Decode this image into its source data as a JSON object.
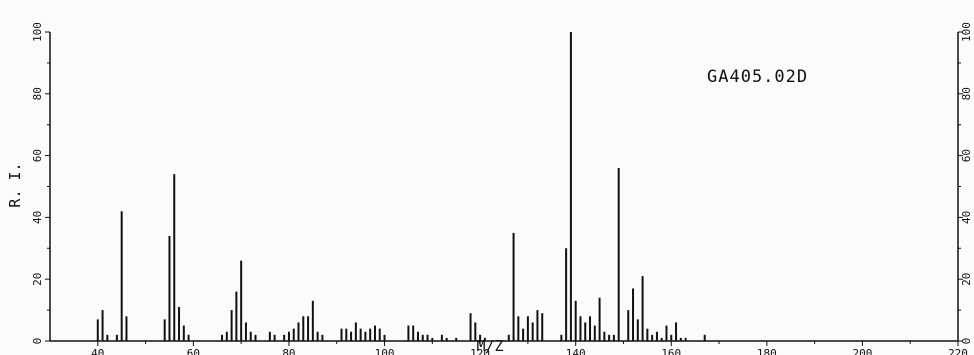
{
  "chart_data": {
    "type": "bar",
    "title": "GA405.02D",
    "xlabel": "M/Z",
    "ylabel": "R. I.",
    "xlim": [
      30,
      220
    ],
    "ylim": [
      0,
      100
    ],
    "x_ticks": [
      "40",
      "60",
      "80",
      "100",
      "120",
      "140",
      "160",
      "180",
      "200",
      "220"
    ],
    "y_ticks": [
      "0",
      "20",
      "40",
      "60",
      "80",
      "100"
    ],
    "y_ticks_right": [
      "0",
      "20",
      "40",
      "60",
      "80",
      "100"
    ],
    "grid": false,
    "series": [
      {
        "x": [
          40,
          41,
          42,
          44,
          45,
          46,
          54,
          55,
          56,
          57,
          58,
          59,
          66,
          67,
          68,
          69,
          70,
          71,
          72,
          73,
          76,
          77,
          79,
          80,
          81,
          82,
          83,
          84,
          85,
          86,
          87,
          91,
          92,
          93,
          94,
          95,
          96,
          97,
          98,
          99,
          100,
          105,
          106,
          107,
          108,
          109,
          110,
          112,
          113,
          115,
          118,
          119,
          120,
          121,
          126,
          127,
          128,
          129,
          130,
          131,
          132,
          133,
          137,
          138,
          139,
          140,
          141,
          142,
          143,
          144,
          145,
          146,
          147,
          148,
          149,
          151,
          152,
          153,
          154,
          155,
          156,
          157,
          158,
          159,
          160,
          161,
          162,
          163,
          167
        ],
        "values": [
          7,
          10,
          2,
          2,
          42,
          8,
          7,
          34,
          54,
          11,
          5,
          2,
          2,
          3,
          10,
          16,
          26,
          6,
          3,
          2,
          3,
          2,
          2,
          3,
          4,
          6,
          8,
          8,
          13,
          3,
          2,
          4,
          4,
          3,
          6,
          4,
          3,
          4,
          5,
          4,
          2,
          5,
          5,
          3,
          2,
          2,
          1,
          2,
          1,
          1,
          9,
          6,
          2,
          1,
          2,
          35,
          8,
          4,
          8,
          6,
          10,
          9,
          2,
          30,
          100,
          13,
          8,
          6,
          8,
          5,
          14,
          3,
          2,
          2,
          56,
          10,
          17,
          7,
          21,
          4,
          2,
          3,
          1,
          5,
          2,
          6,
          1,
          1,
          2
        ]
      }
    ]
  }
}
